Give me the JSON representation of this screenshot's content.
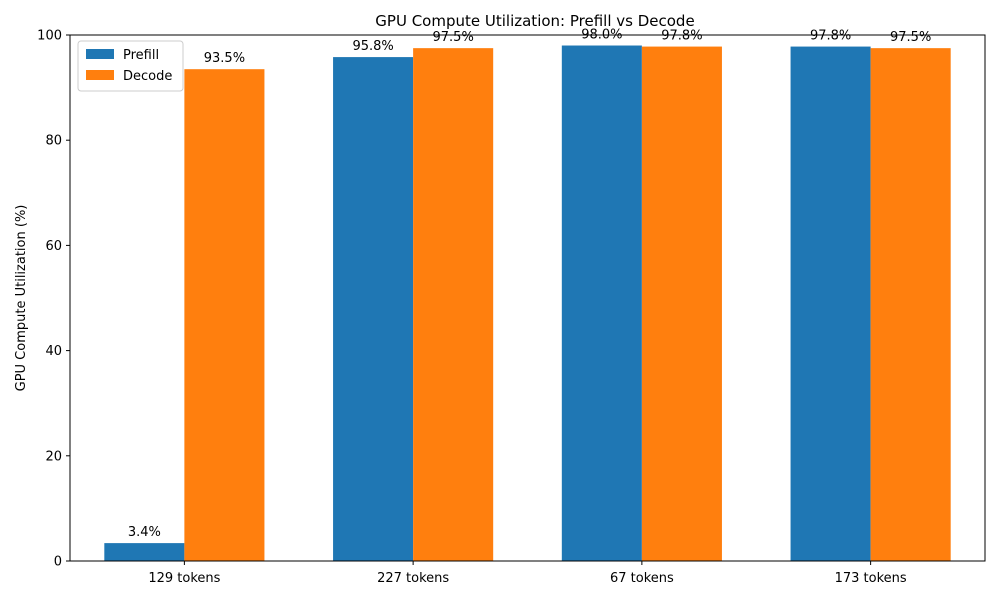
{
  "chart_data": {
    "type": "bar",
    "title": "GPU Compute Utilization: Prefill vs Decode",
    "xlabel": "",
    "ylabel": "GPU Compute Utilization (%)",
    "ylim": [
      0,
      100
    ],
    "yticks": [
      0,
      20,
      40,
      60,
      80,
      100
    ],
    "categories": [
      "129 tokens",
      "227 tokens",
      "67 tokens",
      "173 tokens"
    ],
    "series": [
      {
        "name": "Prefill",
        "color": "#1f77b4",
        "values": [
          3.4,
          95.8,
          98.0,
          97.8
        ],
        "labels": [
          "3.4%",
          "95.8%",
          "98.0%",
          "97.8%"
        ]
      },
      {
        "name": "Decode",
        "color": "#ff7f0e",
        "values": [
          93.5,
          97.5,
          97.8,
          97.5
        ],
        "labels": [
          "93.5%",
          "97.5%",
          "97.8%",
          "97.5%"
        ]
      }
    ],
    "legend": "top-left",
    "grid": false
  }
}
